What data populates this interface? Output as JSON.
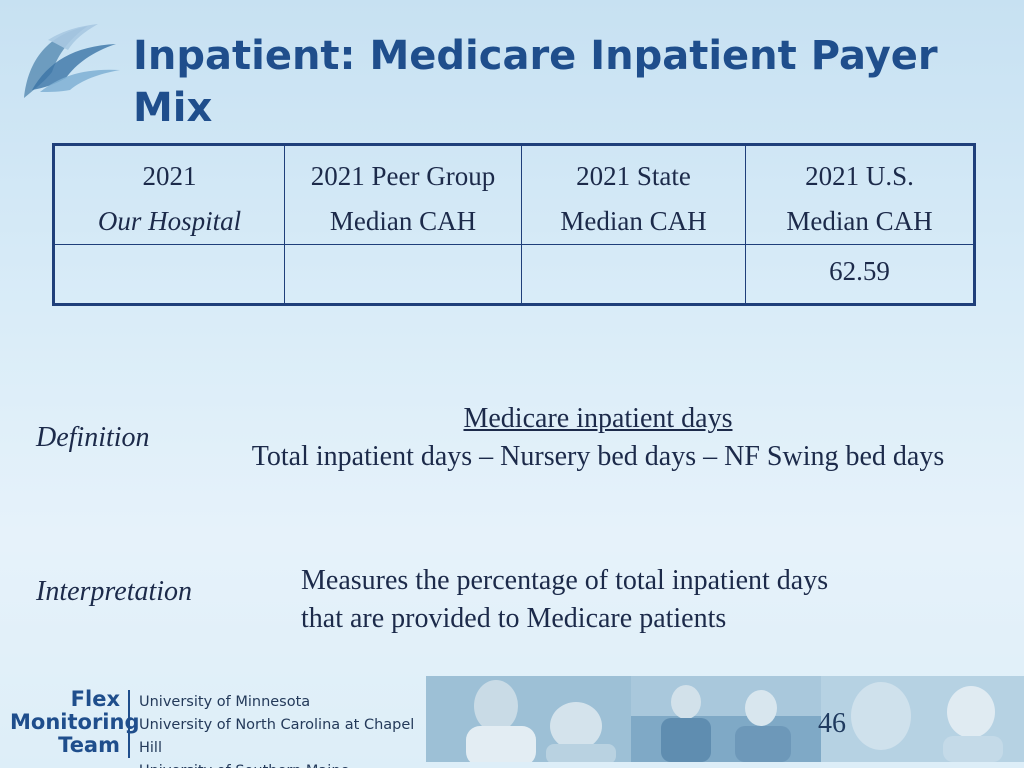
{
  "title": "Inpatient:  Medicare Inpatient Payer Mix",
  "table": {
    "headers": [
      {
        "line1": "2021",
        "line2": "Our Hospital"
      },
      {
        "line1": "2021 Peer Group",
        "line2": "Median CAH"
      },
      {
        "line1": "2021 State",
        "line2": "Median CAH"
      },
      {
        "line1": "2021 U.S.",
        "line2": "Median CAH"
      }
    ],
    "values": [
      "",
      "",
      "",
      "62.59"
    ]
  },
  "definition": {
    "label": "Definition",
    "numerator": "Medicare inpatient days",
    "denominator": "Total inpatient days – Nursery bed days – NF Swing bed days"
  },
  "interpretation": {
    "label": "Interpretation",
    "line1": "Measures the percentage of total inpatient days",
    "line2": "that are provided to Medicare patients"
  },
  "footer": {
    "org_line1": "Flex",
    "org_line2": "Monitoring",
    "org_line3": "Team",
    "universities": [
      "University of Minnesota",
      "University of North Carolina at Chapel Hill",
      "University of Southern Maine"
    ]
  },
  "page_number": "46",
  "colors": {
    "title": "#1f4e8c",
    "table_border": "#1f3f7a",
    "background": "#d9ecf8"
  }
}
